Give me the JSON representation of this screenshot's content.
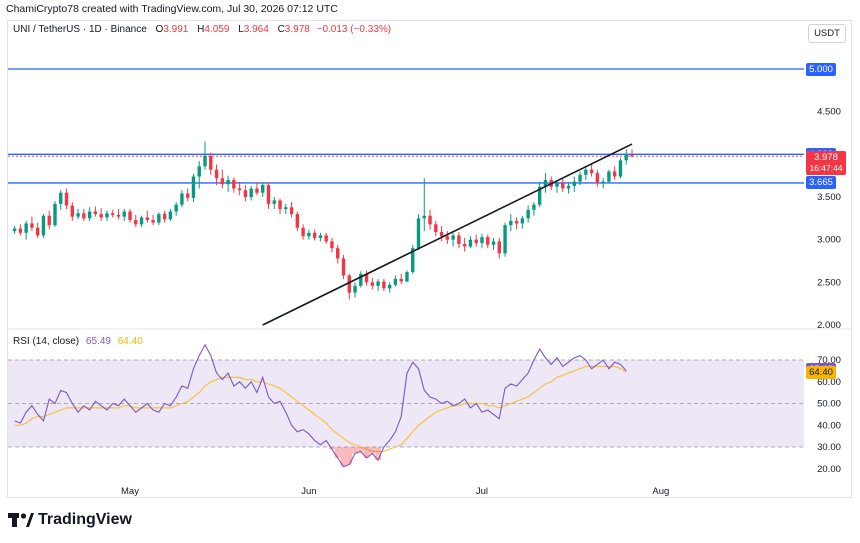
{
  "header": {
    "credit": "ChamiCrypto78 created with TradingView.com, Jul 30, 2026 07:12 UTC"
  },
  "legend": {
    "symbol": "UNI / TetherUS · 1D · Binance",
    "o_label": "O",
    "o_value": "3.991",
    "h_label": "H",
    "h_value": "4.059",
    "l_label": "L",
    "l_value": "3.964",
    "c_label": "C",
    "c_value": "3.978",
    "change": "−0.013 (−0.33%)"
  },
  "quote_currency": "USDT",
  "price_axis": {
    "ticks": [
      {
        "value": 2.0,
        "label": "2.000"
      },
      {
        "value": 2.5,
        "label": "2.500"
      },
      {
        "value": 3.0,
        "label": "3.000"
      },
      {
        "value": 3.5,
        "label": "3.500"
      },
      {
        "value": 4.5,
        "label": "4.500"
      }
    ],
    "tags": [
      {
        "value": 5.0,
        "label": "5.000",
        "bg": "#2962ff",
        "fg": "#ffffff"
      },
      {
        "value": 4.0,
        "label": "4.000",
        "bg": "#2962ff",
        "fg": "#ffffff"
      },
      {
        "value": 3.665,
        "label": "3.665",
        "bg": "#2962ff",
        "fg": "#ffffff"
      }
    ],
    "last_price": {
      "value": 3.978,
      "label": "3.978",
      "countdown": "16:47:44",
      "bg": "#f23645",
      "fg": "#ffffff"
    }
  },
  "time_axis": {
    "labels": [
      {
        "label": "May",
        "day": 0
      },
      {
        "label": "Jun",
        "day": 31
      },
      {
        "label": "Jul",
        "day": 61
      },
      {
        "label": "Aug",
        "day": 92
      }
    ]
  },
  "rsi": {
    "title": "RSI (14, close)",
    "value": "65.49",
    "ma_value": "64.40",
    "ticks": [
      {
        "value": 70,
        "label": "70.00"
      },
      {
        "value": 60,
        "label": "60.00"
      },
      {
        "value": 50,
        "label": "50.00"
      },
      {
        "value": 40,
        "label": "40.00"
      },
      {
        "value": 30,
        "label": "30.00"
      },
      {
        "value": 20,
        "label": "20.00"
      }
    ],
    "tags": [
      {
        "value": 65.49,
        "label": "65.49",
        "bg": "#7e57c2",
        "fg": "#ffffff"
      },
      {
        "value": 64.4,
        "label": "64.40",
        "bg": "#f7b500",
        "fg": "#131722"
      }
    ]
  },
  "colors": {
    "up": "#089981",
    "down": "#f23645",
    "level": "#2962ff",
    "trendline": "#131722",
    "rsi": "#7e57c2",
    "rsi_ma": "#f7c244",
    "rsi_band": "#ede7f6"
  },
  "chart_data": {
    "type": "candlestick",
    "price_range": [
      1.95,
      5.45
    ],
    "horizontal_levels": [
      5.0,
      4.0,
      3.665
    ],
    "trendline": {
      "from": {
        "day": 23,
        "price": 2.0
      },
      "to": {
        "day": 87,
        "price": 4.12
      }
    },
    "first_day_offset": -20,
    "candles": [
      [
        3.1,
        3.16,
        3.07,
        3.13
      ],
      [
        3.13,
        3.18,
        3.05,
        3.08
      ],
      [
        3.08,
        3.22,
        3.0,
        3.19
      ],
      [
        3.19,
        3.27,
        3.1,
        3.14
      ],
      [
        3.14,
        3.2,
        3.02,
        3.05
      ],
      [
        3.05,
        3.3,
        3.02,
        3.28
      ],
      [
        3.28,
        3.34,
        3.12,
        3.17
      ],
      [
        3.17,
        3.45,
        3.15,
        3.42
      ],
      [
        3.42,
        3.58,
        3.35,
        3.55
      ],
      [
        3.55,
        3.6,
        3.36,
        3.4
      ],
      [
        3.4,
        3.44,
        3.22,
        3.27
      ],
      [
        3.27,
        3.36,
        3.24,
        3.31
      ],
      [
        3.31,
        3.36,
        3.22,
        3.25
      ],
      [
        3.25,
        3.38,
        3.22,
        3.33
      ],
      [
        3.33,
        3.39,
        3.27,
        3.3
      ],
      [
        3.3,
        3.37,
        3.22,
        3.26
      ],
      [
        3.26,
        3.34,
        3.22,
        3.31
      ],
      [
        3.31,
        3.35,
        3.26,
        3.29
      ],
      [
        3.29,
        3.36,
        3.24,
        3.27
      ],
      [
        3.27,
        3.36,
        3.22,
        3.33
      ],
      [
        3.33,
        3.36,
        3.2,
        3.23
      ],
      [
        3.23,
        3.29,
        3.15,
        3.18
      ],
      [
        3.18,
        3.28,
        3.15,
        3.26
      ],
      [
        3.26,
        3.34,
        3.2,
        3.23
      ],
      [
        3.23,
        3.29,
        3.17,
        3.2
      ],
      [
        3.2,
        3.32,
        3.17,
        3.3
      ],
      [
        3.3,
        3.34,
        3.2,
        3.24
      ],
      [
        3.24,
        3.36,
        3.22,
        3.33
      ],
      [
        3.33,
        3.44,
        3.28,
        3.41
      ],
      [
        3.41,
        3.58,
        3.38,
        3.54
      ],
      [
        3.54,
        3.6,
        3.45,
        3.49
      ],
      [
        3.49,
        3.77,
        3.44,
        3.74
      ],
      [
        3.74,
        3.92,
        3.6,
        3.86
      ],
      [
        3.86,
        4.15,
        3.82,
        3.98
      ],
      [
        3.98,
        4.02,
        3.76,
        3.82
      ],
      [
        3.82,
        3.88,
        3.64,
        3.72
      ],
      [
        3.72,
        3.82,
        3.6,
        3.65
      ],
      [
        3.65,
        3.75,
        3.56,
        3.7
      ],
      [
        3.7,
        3.73,
        3.55,
        3.6
      ],
      [
        3.6,
        3.68,
        3.52,
        3.58
      ],
      [
        3.58,
        3.64,
        3.45,
        3.5
      ],
      [
        3.5,
        3.63,
        3.46,
        3.6
      ],
      [
        3.6,
        3.67,
        3.52,
        3.55
      ],
      [
        3.55,
        3.67,
        3.5,
        3.64
      ],
      [
        3.64,
        3.67,
        3.36,
        3.42
      ],
      [
        3.42,
        3.5,
        3.36,
        3.46
      ],
      [
        3.46,
        3.48,
        3.3,
        3.36
      ],
      [
        3.36,
        3.42,
        3.3,
        3.38
      ],
      [
        3.38,
        3.44,
        3.26,
        3.3
      ],
      [
        3.3,
        3.33,
        3.1,
        3.14
      ],
      [
        3.14,
        3.18,
        3.0,
        3.04
      ],
      [
        3.04,
        3.12,
        3.0,
        3.08
      ],
      [
        3.08,
        3.12,
        2.99,
        3.02
      ],
      [
        3.02,
        3.08,
        2.98,
        3.05
      ],
      [
        3.05,
        3.08,
        2.95,
        2.98
      ],
      [
        2.98,
        3.02,
        2.85,
        2.9
      ],
      [
        2.9,
        2.94,
        2.72,
        2.78
      ],
      [
        2.78,
        2.82,
        2.54,
        2.58
      ],
      [
        2.58,
        2.6,
        2.3,
        2.38
      ],
      [
        2.38,
        2.5,
        2.32,
        2.46
      ],
      [
        2.46,
        2.63,
        2.44,
        2.6
      ],
      [
        2.6,
        2.64,
        2.46,
        2.5
      ],
      [
        2.5,
        2.55,
        2.42,
        2.46
      ],
      [
        2.46,
        2.54,
        2.4,
        2.51
      ],
      [
        2.51,
        2.54,
        2.4,
        2.43
      ],
      [
        2.43,
        2.5,
        2.38,
        2.47
      ],
      [
        2.47,
        2.58,
        2.45,
        2.54
      ],
      [
        2.54,
        2.6,
        2.48,
        2.51
      ],
      [
        2.51,
        2.64,
        2.5,
        2.62
      ],
      [
        2.62,
        2.94,
        2.6,
        2.9
      ],
      [
        2.9,
        3.3,
        2.88,
        3.25
      ],
      [
        3.25,
        3.72,
        3.1,
        3.28
      ],
      [
        3.28,
        3.35,
        3.12,
        3.18
      ],
      [
        3.18,
        3.22,
        3.04,
        3.09
      ],
      [
        3.09,
        3.16,
        2.98,
        3.04
      ],
      [
        3.04,
        3.1,
        2.95,
        3.0
      ],
      [
        3.0,
        3.08,
        2.92,
        3.05
      ],
      [
        3.05,
        3.09,
        2.9,
        2.95
      ],
      [
        2.95,
        3.02,
        2.86,
        2.92
      ],
      [
        2.92,
        3.04,
        2.9,
        3.0
      ],
      [
        3.0,
        3.06,
        2.92,
        2.96
      ],
      [
        2.96,
        3.07,
        2.9,
        3.03
      ],
      [
        3.03,
        3.06,
        2.9,
        2.94
      ],
      [
        2.94,
        3.02,
        2.88,
        2.98
      ],
      [
        2.98,
        3.02,
        2.78,
        2.84
      ],
      [
        2.84,
        3.2,
        2.8,
        3.17
      ],
      [
        3.17,
        3.3,
        3.1,
        3.22
      ],
      [
        3.22,
        3.26,
        3.12,
        3.19
      ],
      [
        3.19,
        3.28,
        3.13,
        3.25
      ],
      [
        3.25,
        3.4,
        3.2,
        3.35
      ],
      [
        3.35,
        3.44,
        3.28,
        3.41
      ],
      [
        3.41,
        3.68,
        3.38,
        3.62
      ],
      [
        3.62,
        3.78,
        3.55,
        3.7
      ],
      [
        3.7,
        3.74,
        3.58,
        3.62
      ],
      [
        3.62,
        3.7,
        3.55,
        3.66
      ],
      [
        3.66,
        3.71,
        3.56,
        3.6
      ],
      [
        3.6,
        3.66,
        3.54,
        3.63
      ],
      [
        3.63,
        3.74,
        3.56,
        3.68
      ],
      [
        3.68,
        3.8,
        3.64,
        3.76
      ],
      [
        3.76,
        3.86,
        3.7,
        3.82
      ],
      [
        3.82,
        3.88,
        3.74,
        3.78
      ],
      [
        3.78,
        3.82,
        3.62,
        3.66
      ],
      [
        3.66,
        3.72,
        3.6,
        3.68
      ],
      [
        3.68,
        3.82,
        3.66,
        3.8
      ],
      [
        3.8,
        3.86,
        3.7,
        3.74
      ],
      [
        3.74,
        3.96,
        3.72,
        3.93
      ],
      [
        3.93,
        4.06,
        3.88,
        3.99
      ],
      [
        3.991,
        4.059,
        3.964,
        3.978
      ]
    ],
    "rsi_values": [
      42,
      41,
      46,
      49,
      45,
      42,
      52,
      50,
      56,
      55,
      50,
      46,
      49,
      47,
      51,
      49,
      47,
      50,
      49,
      52,
      49,
      46,
      48,
      50,
      47,
      46,
      50,
      49,
      53,
      58,
      57,
      66,
      72,
      77,
      72,
      64,
      61,
      64,
      58,
      60,
      57,
      60,
      55,
      62,
      53,
      50,
      51,
      46,
      40,
      37,
      38,
      36,
      33,
      31,
      33,
      29,
      25,
      21,
      22,
      27,
      28,
      25,
      27,
      24,
      30,
      33,
      37,
      44,
      64,
      69,
      66,
      56,
      53,
      52,
      50,
      51,
      49,
      50,
      52,
      48,
      50,
      46,
      47,
      45,
      43,
      57,
      59,
      58,
      61,
      64,
      70,
      75,
      71,
      68,
      71,
      67,
      69,
      71,
      72,
      70,
      66,
      68,
      70,
      66,
      69,
      68,
      65
    ],
    "rsi_ma_values": [
      40,
      40,
      41,
      43,
      44,
      44,
      45,
      46,
      47,
      48,
      48,
      48,
      48,
      48,
      48,
      48,
      48,
      48,
      48,
      49,
      49,
      48,
      48,
      48,
      48,
      48,
      48,
      48,
      49,
      50,
      51,
      53,
      55,
      58,
      60,
      61,
      62,
      62,
      62,
      62,
      61,
      61,
      60,
      60,
      59,
      58,
      57,
      55,
      53,
      51,
      49,
      47,
      45,
      43,
      41,
      38,
      36,
      34,
      32,
      31,
      30,
      29,
      28,
      28,
      28,
      29,
      30,
      31,
      34,
      37,
      40,
      42,
      44,
      46,
      47,
      48,
      49,
      49,
      50,
      50,
      50,
      50,
      49,
      49,
      48,
      49,
      50,
      51,
      52,
      53,
      55,
      57,
      59,
      60,
      62,
      63,
      64,
      65,
      66,
      67,
      67,
      67,
      67,
      67,
      67,
      66,
      64.4
    ]
  }
}
